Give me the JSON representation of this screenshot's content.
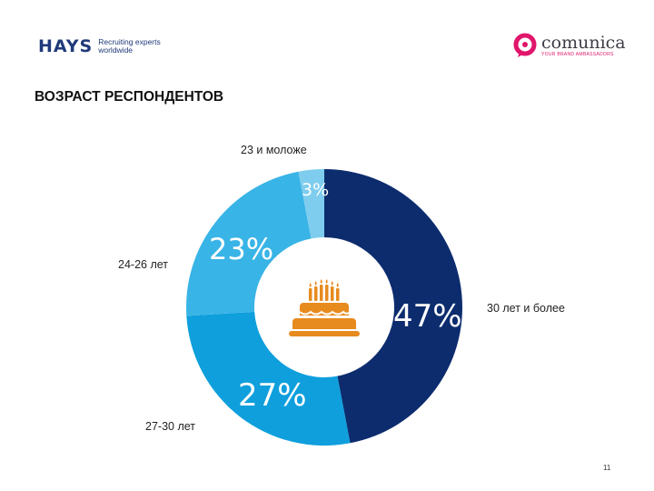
{
  "header": {
    "hays_logo": {
      "word": "HAYS",
      "tagline": "Recruiting experts\nworldwide"
    },
    "comunica_logo": {
      "name": "comunica",
      "tagline": "YOUR BRAND AMBASSADORS"
    }
  },
  "slide": {
    "title": "ВОЗРАСТ РЕСПОНДЕНТОВ",
    "page_number": "11"
  },
  "colors": {
    "young": "#7fcdee",
    "age_24_26": "#39b4e6",
    "age_27_30": "#0f9fdc",
    "age_30_plus": "#0c2c6e",
    "cake": "#e78b1e"
  },
  "chart_data": {
    "type": "pie",
    "title": "ВОЗРАСТ РЕСПОНДЕНТОВ",
    "donut": true,
    "center_icon": "birthday-cake-icon",
    "slices": [
      {
        "label": "30 лет и более",
        "value": 47,
        "display": "47%"
      },
      {
        "label": "27-30 лет",
        "value": 27,
        "display": "27%"
      },
      {
        "label": "24-26 лет",
        "value": 23,
        "display": "23%"
      },
      {
        "label": "23 и моложе",
        "value": 3,
        "display": "3%"
      }
    ]
  }
}
